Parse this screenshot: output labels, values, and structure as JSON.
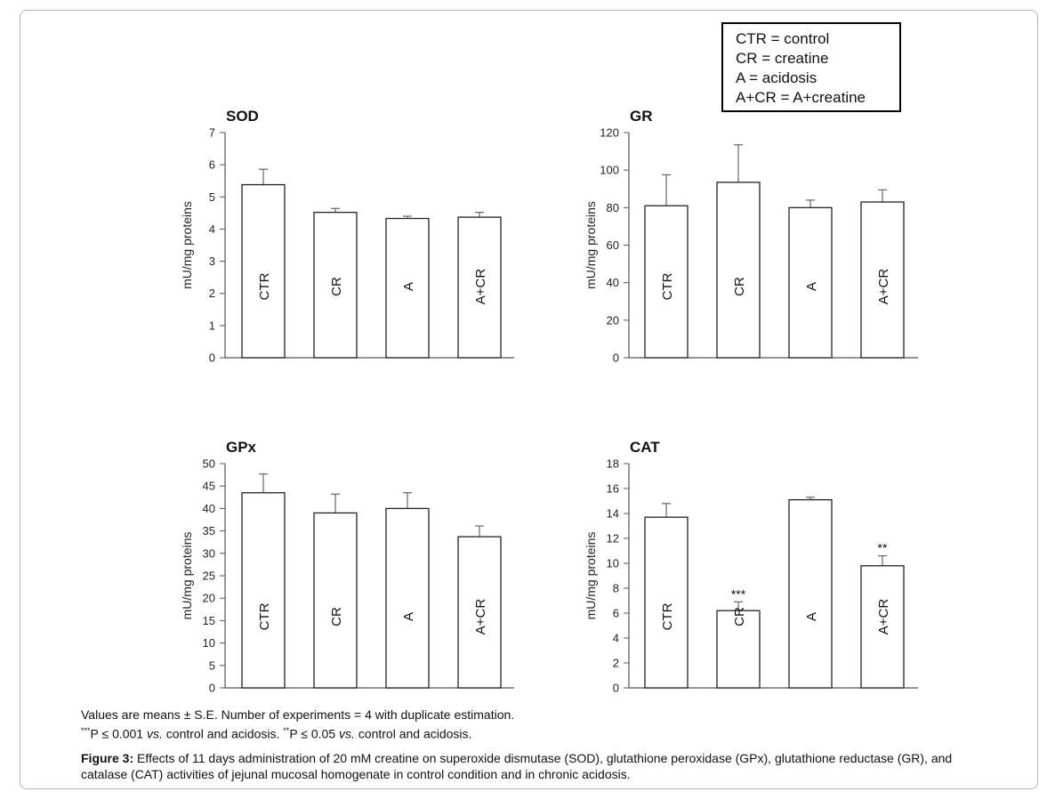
{
  "legend": {
    "lines": [
      "CTR = control",
      "CR = creatine",
      "A = acidosis",
      "A+CR = A+creatine"
    ]
  },
  "notes": {
    "line1": "Values are means ± S.E. Number of experiments = 4 with duplicate estimation.",
    "line2_mark_a": "***",
    "line2_text_a": "P ≤ 0.001 ",
    "line2_vs_a": "vs.",
    "line2_text_b": " control and acidosis. ",
    "line2_mark_b": "**",
    "line2_text_c": "P ≤ 0.05 ",
    "line2_vs_b": "vs.",
    "line2_text_d": " control and acidosis."
  },
  "caption": {
    "label": "Figure 3:",
    "text": " Effects of 11 days administration of 20 mM creatine on superoxide dismutase (SOD), glutathione peroxidase (GPx), glutathione reductase (GR), and catalase (CAT) activities of jejunal mucosal homogenate in control condition and in chronic acidosis."
  },
  "chart_data": [
    {
      "type": "bar",
      "title": "SOD",
      "ylabel": "mU/mg proteins",
      "categories": [
        "CTR",
        "CR",
        "A",
        "A+CR"
      ],
      "values": [
        5.38,
        4.52,
        4.33,
        4.37
      ],
      "errors": [
        0.48,
        0.12,
        0.07,
        0.15
      ],
      "significance": [
        "",
        "",
        "",
        ""
      ],
      "ylim": [
        0,
        7
      ],
      "yticks": [
        0,
        1,
        2,
        3,
        4,
        5,
        6,
        7
      ]
    },
    {
      "type": "bar",
      "title": "GR",
      "ylabel": "mU/mg proteins",
      "categories": [
        "CTR",
        "CR",
        "A",
        "A+CR"
      ],
      "values": [
        81,
        93.5,
        80,
        83
      ],
      "errors": [
        16.5,
        20,
        4,
        6.5
      ],
      "significance": [
        "",
        "",
        "",
        ""
      ],
      "ylim": [
        0,
        120
      ],
      "yticks": [
        0,
        20,
        40,
        60,
        80,
        100,
        120
      ]
    },
    {
      "type": "bar",
      "title": "GPx",
      "ylabel": "mU/mg proteins",
      "categories": [
        "CTR",
        "CR",
        "A",
        "A+CR"
      ],
      "values": [
        43.5,
        39,
        40,
        33.7
      ],
      "errors": [
        4.2,
        4.2,
        3.5,
        2.4
      ],
      "significance": [
        "",
        "",
        "",
        ""
      ],
      "ylim": [
        0,
        50
      ],
      "yticks": [
        0,
        5,
        10,
        15,
        20,
        25,
        30,
        35,
        40,
        45,
        50
      ]
    },
    {
      "type": "bar",
      "title": "CAT",
      "ylabel": "mU/mg proteins",
      "categories": [
        "CTR",
        "CR",
        "A",
        "A+CR"
      ],
      "values": [
        13.7,
        6.2,
        15.1,
        9.8
      ],
      "errors": [
        1.1,
        0.7,
        0.2,
        0.8
      ],
      "significance": [
        "",
        "***",
        "",
        "**"
      ],
      "ylim": [
        0,
        18
      ],
      "yticks": [
        0,
        2,
        4,
        6,
        8,
        10,
        12,
        14,
        16,
        18
      ]
    }
  ]
}
